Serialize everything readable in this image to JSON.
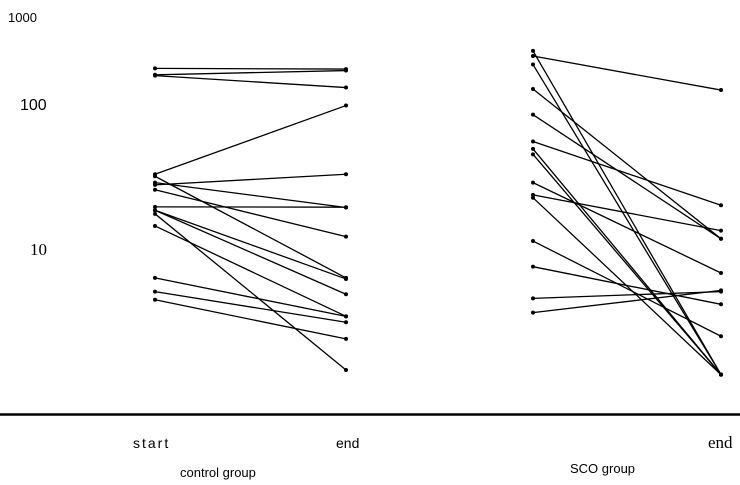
{
  "chart_data": {
    "type": "line",
    "yscale": "log",
    "ylim": [
      1,
      1000
    ],
    "yticks": [
      {
        "value": 1000,
        "label": "1000"
      },
      {
        "value": 100,
        "label": "100"
      },
      {
        "value": 10,
        "label": "10"
      }
    ],
    "groups": [
      {
        "name": "control group",
        "x_labels": [
          "start",
          "end"
        ],
        "series": [
          {
            "values": [
              174,
              172
            ]
          },
          {
            "values": [
              155,
              128
            ]
          },
          {
            "values": [
              157,
              168
            ]
          },
          {
            "values": [
              32,
              96
            ]
          },
          {
            "values": [
              27,
              32
            ]
          },
          {
            "values": [
              28,
              18.8
            ]
          },
          {
            "values": [
              25,
              11.8
            ]
          },
          {
            "values": [
              31,
              6.1
            ]
          },
          {
            "values": [
              19,
              18.9
            ]
          },
          {
            "values": [
              18,
              6.0
            ]
          },
          {
            "values": [
              18,
              4.7
            ]
          },
          {
            "values": [
              17,
              1.4
            ]
          },
          {
            "values": [
              14,
              3.3
            ]
          },
          {
            "values": [
              6.1,
              3.3
            ]
          },
          {
            "values": [
              4.9,
              3.0
            ]
          },
          {
            "values": [
              4.3,
              2.3
            ]
          }
        ]
      },
      {
        "name": "SCO group",
        "x_labels": [
          "",
          "end"
        ],
        "series": [
          {
            "values": [
              212,
              123
            ]
          },
          {
            "values": [
              230,
              1.3
            ]
          },
          {
            "values": [
              185,
              1.3
            ]
          },
          {
            "values": [
              125,
              11.4
            ]
          },
          {
            "values": [
              83,
              11.4
            ]
          },
          {
            "values": [
              54,
              19.5
            ]
          },
          {
            "values": [
              48,
              1.3
            ]
          },
          {
            "values": [
              44,
              1.3
            ]
          },
          {
            "values": [
              28,
              6.6
            ]
          },
          {
            "values": [
              23,
              13.0
            ]
          },
          {
            "values": [
              22,
              1.3
            ]
          },
          {
            "values": [
              11,
              2.4
            ]
          },
          {
            "values": [
              7.3,
              4.0
            ]
          },
          {
            "values": [
              4.4,
              4.9
            ]
          },
          {
            "values": [
              3.5,
              5.0
            ]
          }
        ]
      }
    ]
  }
}
